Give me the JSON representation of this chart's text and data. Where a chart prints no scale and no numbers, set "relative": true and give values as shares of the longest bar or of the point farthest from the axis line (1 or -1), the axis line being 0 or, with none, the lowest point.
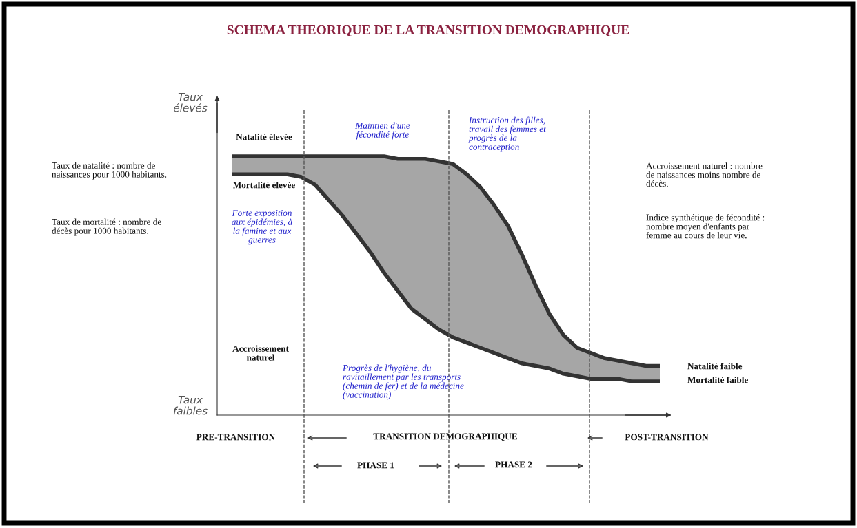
{
  "chart_data": {
    "type": "line",
    "title": "SCHEMA THEORIQUE DE LA TRANSITION DEMOGRAPHIQUE",
    "relative": true,
    "legend": false,
    "marker": "none",
    "line_style": "solid",
    "categories": [
      null,
      null,
      null,
      null,
      null,
      null,
      null,
      null,
      null,
      null,
      null,
      null,
      null,
      null,
      null,
      null,
      null,
      null,
      null,
      null,
      null,
      null,
      null,
      null,
      null,
      null,
      null,
      null,
      null,
      null,
      null,
      null
    ],
    "series": [
      {
        "color": "#333333",
        "values": [
          1.0,
          1.0,
          1.0,
          1.0,
          1.0,
          1.0,
          1.0,
          1.0,
          1.0,
          1.0,
          1.0,
          1.0,
          0.99,
          0.99,
          0.99,
          0.98,
          0.97,
          0.93,
          0.88,
          0.81,
          0.73,
          0.62,
          0.5,
          0.39,
          0.31,
          0.26,
          0.24,
          0.22,
          0.21,
          0.2,
          0.19,
          0.19
        ],
        "lower": [
          0.93,
          0.93,
          0.93,
          0.93,
          0.93,
          0.92,
          0.89,
          0.83,
          0.77,
          0.7,
          0.63,
          0.55,
          0.48,
          0.41,
          0.37,
          0.33,
          0.3,
          0.28,
          0.26,
          0.24,
          0.22,
          0.2,
          0.19,
          0.18,
          0.16,
          0.15,
          0.14,
          0.14,
          0.14,
          0.13,
          0.13,
          0.13
        ],
        "upper": [
          1.0,
          1.0,
          1.0,
          1.0,
          1.0,
          1.0,
          1.0,
          1.0,
          1.0,
          1.0,
          1.0,
          1.0,
          0.99,
          0.99,
          0.99,
          0.98,
          0.97,
          0.93,
          0.88,
          0.81,
          0.73,
          0.62,
          0.5,
          0.39,
          0.31,
          0.26,
          0.24,
          0.22,
          0.21,
          0.2,
          0.19,
          0.19
        ]
      },
      {
        "color": "#333333",
        "values": [
          0.93,
          0.93,
          0.93,
          0.93,
          0.93,
          0.92,
          0.89,
          0.83,
          0.77,
          0.7,
          0.63,
          0.55,
          0.48,
          0.41,
          0.37,
          0.33,
          0.3,
          0.28,
          0.26,
          0.24,
          0.22,
          0.2,
          0.19,
          0.18,
          0.16,
          0.15,
          0.14,
          0.14,
          0.14,
          0.13,
          0.13,
          0.13
        ]
      }
    ],
    "annotations": [
      "Taux\nélevés",
      "Taux\nfaibles",
      "Natalité élevée",
      "Mortalité élevée",
      "Forte exposition\naux épidémies, à\nla famine et aux\nguerres",
      "Maintien d'une\nfécondité forte",
      "Instruction des filles,\ntravail des femmes et\nprogrès de la\ncontraception",
      "Accroissement\nnaturel",
      "Progrès de l'hygiène, du\nravitaillement par les transports\n(chemin de fer) et de la médecine\n(vaccination)",
      "Natalité faible",
      "Mortalité faible",
      "PRE-TRANSITION",
      "TRANSITION DEMOGRAPHIQUE",
      "POST-TRANSITION",
      "PHASE 1",
      "PHASE 2",
      "Taux de natalité : nombre de\nnaissances pour 1000 habitants.",
      "Taux de mortalité : nombre de\ndécès pour 1000 habitants.",
      "Accroissement naturel : nombre\nde naissances moins nombre de\ndécès.",
      "Indice synthétique de fécondité :\nnombre moyen d'enfants par\nfemme au cours de leur vie."
    ]
  }
}
